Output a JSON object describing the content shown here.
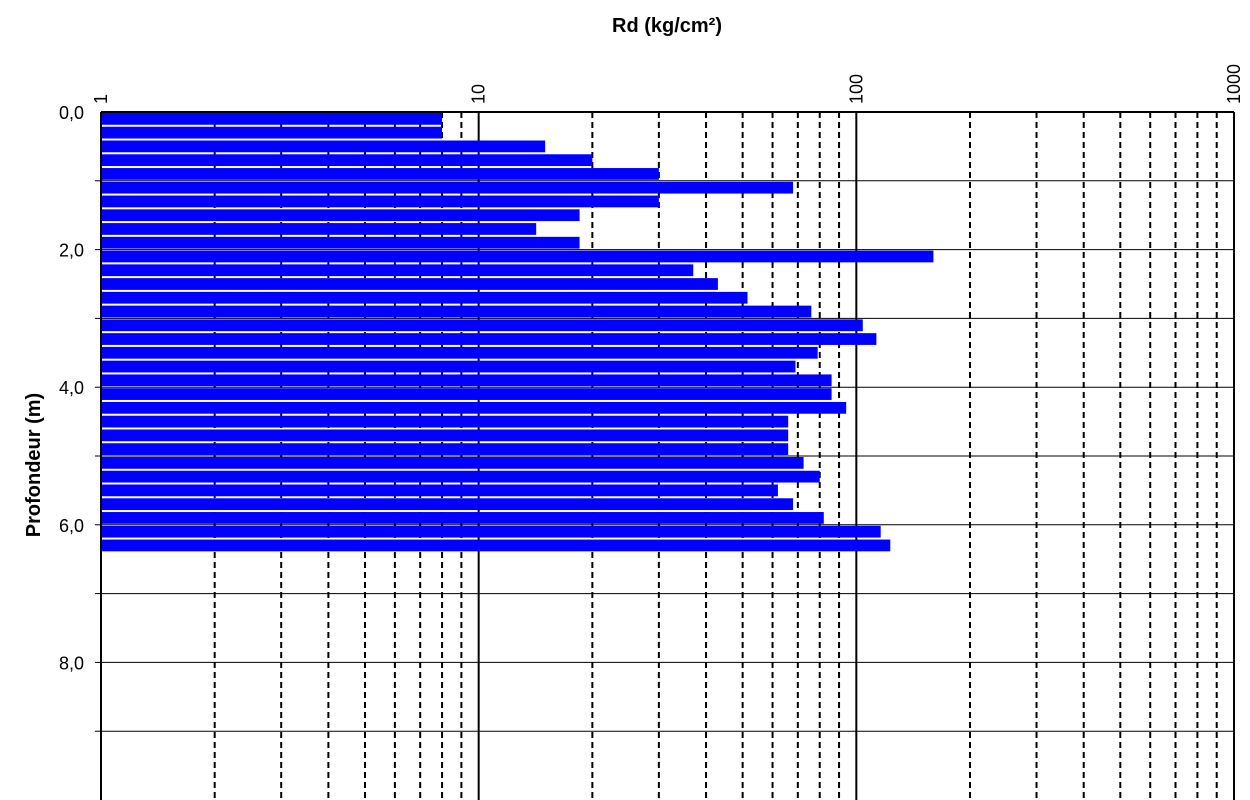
{
  "chart_data": {
    "type": "bar",
    "orientation": "horizontal",
    "xlabel": "Rd (kg/cm²)",
    "ylabel": "Profondeur (m)",
    "x_scale": "log",
    "xlim": [
      1,
      1000
    ],
    "ylim": [
      0,
      10
    ],
    "y_inverted": true,
    "x_ticks": [
      "1",
      "10",
      "100",
      "1000"
    ],
    "y_ticks": [
      "0,0",
      "2,0",
      "4,0",
      "6,0",
      "8,0"
    ],
    "grid": true,
    "bar_color": "#0000ff",
    "bar_step": 0.2,
    "depths": [
      0.0,
      0.2,
      0.4,
      0.6,
      0.8,
      1.0,
      1.2,
      1.4,
      1.6,
      1.8,
      2.0,
      2.2,
      2.4,
      2.6,
      2.8,
      3.0,
      3.2,
      3.4,
      3.6,
      3.8,
      4.0,
      4.2,
      4.4,
      4.6,
      4.8,
      5.0,
      5.2,
      5.4,
      5.6,
      5.8,
      6.0,
      6.2
    ],
    "values": [
      8,
      8,
      15,
      20,
      30,
      68,
      30,
      18.5,
      14.2,
      18.5,
      160,
      37,
      43,
      51.5,
      76,
      104,
      113,
      79,
      69,
      86,
      86,
      94,
      66,
      66,
      66,
      72.5,
      80,
      62,
      68,
      82,
      116,
      123
    ]
  }
}
